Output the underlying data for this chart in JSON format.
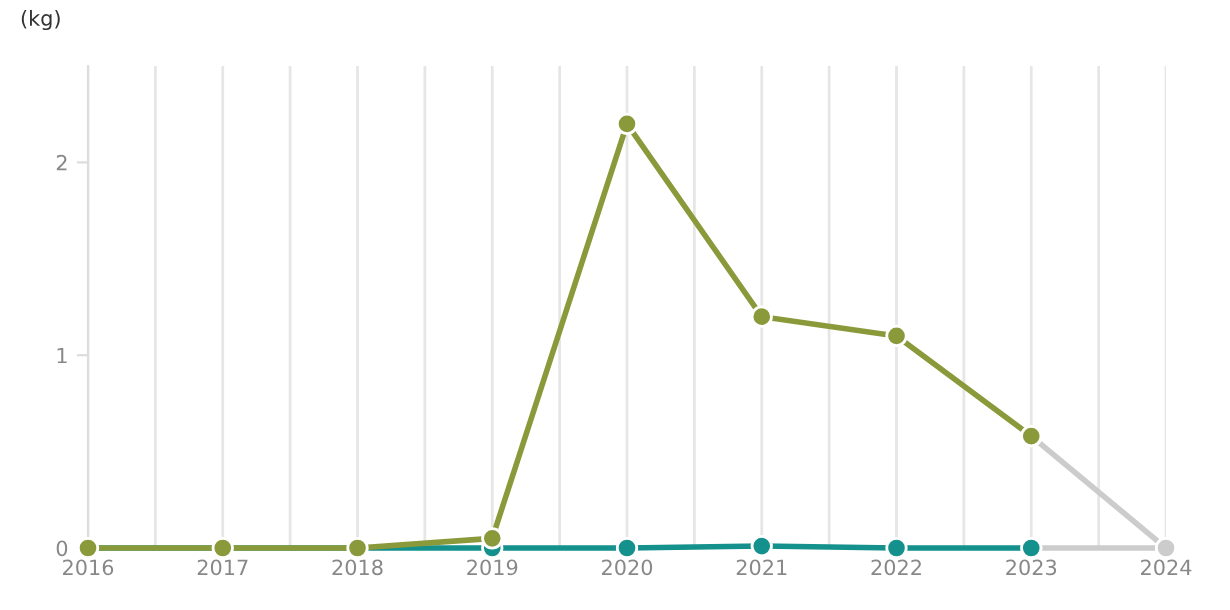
{
  "chart_data": {
    "type": "line",
    "ylabel": "(kg)",
    "x": [
      2016,
      2017,
      2018,
      2019,
      2020,
      2021,
      2022,
      2023,
      2024
    ],
    "series": [
      {
        "color": "#cccccc",
        "values": [
          null,
          null,
          null,
          null,
          null,
          null,
          null,
          0.58,
          0
        ]
      },
      {
        "color": "#cccccc",
        "values": [
          null,
          null,
          null,
          null,
          null,
          null,
          null,
          0,
          0
        ]
      },
      {
        "color": "#14918c",
        "values": [
          0,
          0,
          0,
          0,
          0,
          0.01,
          0,
          0,
          null
        ]
      },
      {
        "color": "#8a9a3b",
        "values": [
          0,
          0,
          0,
          0.05,
          2.2,
          1.2,
          1.1,
          0.58,
          null
        ]
      }
    ],
    "xlim": [
      2016,
      2024
    ],
    "xticks": [
      2016,
      {
        "value": 2016.5,
        "label": null
      },
      2017,
      {
        "value": 2017.5,
        "label": null
      },
      2018,
      {
        "value": 2018.5,
        "label": null
      },
      2019,
      {
        "value": 2019.5,
        "label": null
      },
      2020,
      {
        "value": 2020.5,
        "label": null
      },
      2021,
      {
        "value": 2021.5,
        "label": null
      },
      2022,
      {
        "value": 2022.5,
        "label": null
      },
      2023,
      {
        "value": 2023.5,
        "label": null
      },
      2024
    ],
    "ylim": [
      0,
      2.5
    ],
    "yticks": [
      0,
      1,
      2
    ],
    "grid": "x",
    "marker": "circle",
    "line_style": "solid"
  }
}
